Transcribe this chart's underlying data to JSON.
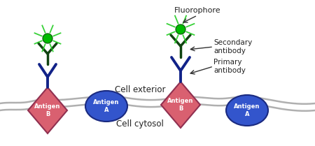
{
  "bg_color": "#ffffff",
  "membrane_color": "#b0b0b0",
  "antigen_b_color": "#d96070",
  "antigen_b_color2": "#e08090",
  "antigen_b_edge": "#903050",
  "antigen_a_color": "#3355cc",
  "antigen_a_edge": "#1a2a80",
  "antibody_primary_color": "#112288",
  "antibody_secondary_color": "#114411",
  "fluorophore_color": "#00bb00",
  "fluorophore_ray_color": "#22cc22",
  "text_color": "#222222",
  "arrow_color": "#333333",
  "cell_exterior_label": "Cell exterior",
  "cell_cytosol_label": "Cell cytosol",
  "fluorophore_label": "Fluorophore",
  "secondary_label": "Secondary\nantibody",
  "primary_label": "Primary\nantibody",
  "antigen_b_label": "Antigen\nB",
  "antigen_a_label": "Antigen\nA",
  "fig_w": 4.5,
  "fig_h": 2.09,
  "dpi": 100
}
